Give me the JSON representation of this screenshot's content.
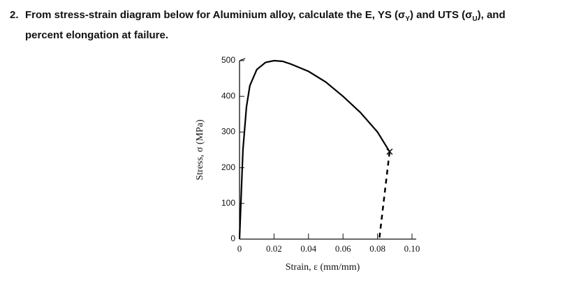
{
  "question": {
    "number": "2.",
    "lines": [
      [
        "From stress-strain diagram below for Aluminium alloy, calculate the E, YS (σ",
        "Y",
        ") and UTS (σ",
        "U",
        "), and"
      ],
      [
        "percent elongation at failure."
      ]
    ]
  },
  "chart_data": {
    "type": "line",
    "xlabel": "Strain, ε (mm/mm)",
    "ylabel": "Stress, σ (MPa)",
    "xlim": [
      0,
      0.1
    ],
    "ylim": [
      0,
      500
    ],
    "xticks": [
      0,
      0.02,
      0.04,
      0.06,
      0.08,
      {
        "value": 0.1,
        "label": "0.10"
      }
    ],
    "yticks": [
      0,
      100,
      200,
      300,
      400,
      500
    ],
    "series": [
      {
        "color": "#000000",
        "style": "solid",
        "x": [
          0,
          0.002,
          0.004,
          0.006,
          0.01,
          0.015,
          0.02,
          0.025,
          0.03,
          0.04,
          0.05,
          0.06,
          0.07,
          0.08,
          0.087
        ],
        "values": [
          0,
          250,
          370,
          430,
          475,
          495,
          500,
          498,
          490,
          470,
          440,
          400,
          355,
          300,
          245
        ]
      },
      {
        "color": "#000000",
        "style": "dashed",
        "x": [
          0.087,
          0.081
        ],
        "values": [
          245,
          0
        ]
      }
    ]
  }
}
